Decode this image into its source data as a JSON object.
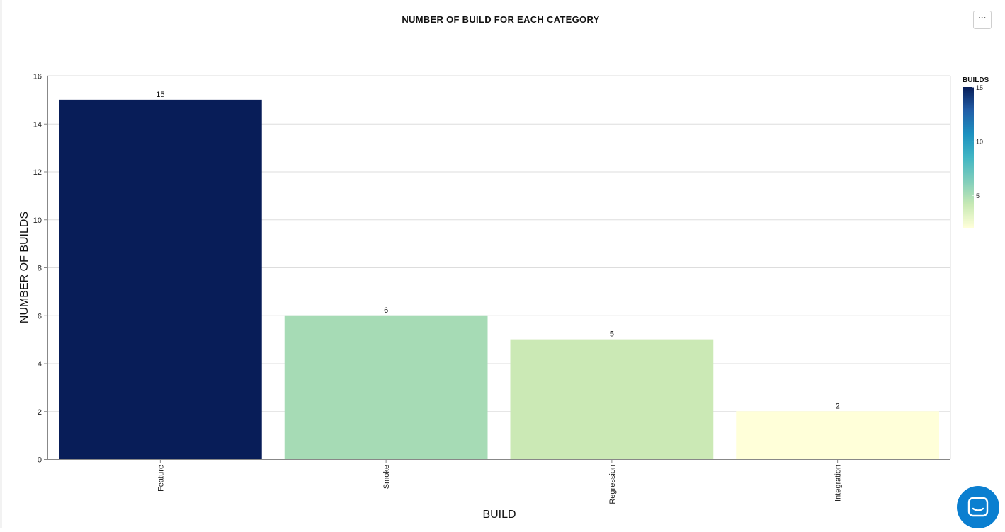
{
  "toolbar": {
    "menu_label": "···"
  },
  "chart_data": {
    "type": "bar",
    "title": "NUMBER OF BUILD FOR EACH CATEGORY",
    "xlabel": "BUILD",
    "ylabel": "NUMBER OF BUILDS",
    "categories": [
      "Feature",
      "Smoke",
      "Regression",
      "Integration"
    ],
    "values": [
      15,
      6,
      5,
      2
    ],
    "data_labels": [
      "15",
      "6",
      "5",
      "2"
    ],
    "bar_colors": [
      "#081d58",
      "#a6dbb5",
      "#cbe9b5",
      "#ffffd9"
    ],
    "ylim": [
      0,
      16
    ],
    "yticks": [
      0,
      2,
      4,
      6,
      8,
      10,
      12,
      14,
      16
    ],
    "grid": true,
    "legend": {
      "title": "BUILDS",
      "position": "right",
      "ticks": [
        15,
        10,
        5
      ],
      "range": [
        2,
        15
      ],
      "gradient": [
        "#ffffd9",
        "#c7e9b4",
        "#7fcdbb",
        "#41b6c4",
        "#1d91c0",
        "#225ea8",
        "#081d58"
      ]
    }
  },
  "chat": {
    "icon": "chat-icon"
  }
}
